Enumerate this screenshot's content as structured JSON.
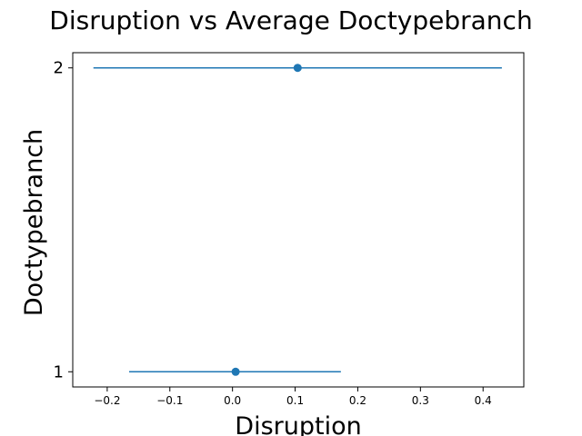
{
  "chart_data": {
    "type": "scatter",
    "title": "Disruption vs Average Doctypebranch",
    "xlabel": "Disruption",
    "ylabel": "Doctypebranch",
    "xlim": [
      -0.255,
      0.465
    ],
    "ylim": [
      0.95,
      2.05
    ],
    "xticks": [
      -0.2,
      -0.1,
      0.0,
      0.1,
      0.2,
      0.3,
      0.4
    ],
    "xtick_labels": [
      "−0.2",
      "−0.1",
      "0.0",
      "0.1",
      "0.2",
      "0.3",
      "0.4"
    ],
    "yticks": [
      1,
      2
    ],
    "ytick_labels": [
      "1",
      "2"
    ],
    "grid": false,
    "color": "#1f77b4",
    "points": [
      {
        "y": 1,
        "x": 0.005,
        "xerr_low": -0.165,
        "xerr_high": 0.173
      },
      {
        "y": 2,
        "x": 0.104,
        "xerr_low": -0.222,
        "xerr_high": 0.43
      }
    ]
  }
}
